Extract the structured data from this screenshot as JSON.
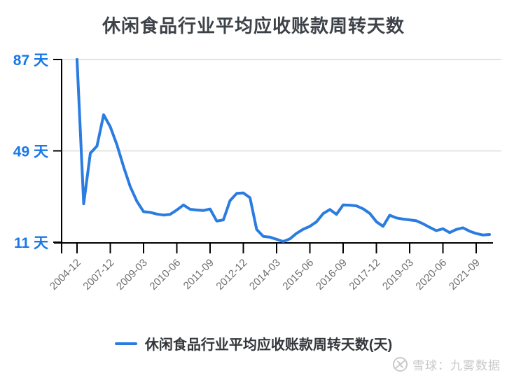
{
  "title": "休闲食品行业平均应收账款周转天数",
  "legend": {
    "label": "休闲食品行业平均应收账款周转天数(天)"
  },
  "watermark": {
    "text": "雪球：九雾数据",
    "icon": "xueqiu-logo"
  },
  "colors": {
    "line_blue": "#2b7ce0",
    "axis_label_blue": "#1878e8",
    "title_text": "#3d4249",
    "x_label_gray": "#6e6e6e",
    "grid_gray": "#e4e4e4",
    "axis_black": "#000000",
    "watermark_gray": "#c9c9c9",
    "background": "#ffffff"
  },
  "chart_data": {
    "type": "line",
    "title": "休闲食品行业平均应收账款周转天数",
    "legend_position": "bottom",
    "grid": "horizontal-only",
    "ylim": [
      11,
      87
    ],
    "y_ticks": [
      87,
      49,
      11
    ],
    "y_tick_labels": [
      "87 天",
      "49 天",
      "11 天"
    ],
    "x_label_every": 5,
    "x_tick_labels": [
      "2004-12",
      "2007-12",
      "2009-03",
      "2010-06",
      "2011-09",
      "2012-12",
      "2014-03",
      "2015-06",
      "2016-09",
      "2017-12",
      "2019-03",
      "2020-06",
      "2021-09"
    ],
    "series": [
      {
        "name": "休闲食品行业平均应收账款周转天数(天)",
        "values": [
          87,
          27,
          48,
          51,
          64,
          59,
          51.5,
          42.4,
          34.1,
          28,
          23.7,
          23.4,
          22.7,
          22.3,
          22.6,
          24.4,
          26.5,
          24.7,
          24.4,
          24.2,
          24.8,
          19.8,
          20.3,
          28.3,
          31.3,
          31.5,
          29.5,
          16.3,
          13.4,
          13.1,
          12.2,
          11.3,
          12.4,
          14.7,
          16.4,
          17.6,
          19.5,
          22.9,
          24.6,
          22.6,
          26.5,
          26.4,
          26.1,
          24.9,
          23.0,
          19.5,
          17.6,
          22.2,
          21.1,
          20.6,
          20.3,
          19.9,
          18.7,
          17.2,
          15.8,
          16.6,
          15.0,
          16.3,
          17.0,
          15.6,
          14.6,
          14.0,
          14.2
        ]
      }
    ]
  }
}
